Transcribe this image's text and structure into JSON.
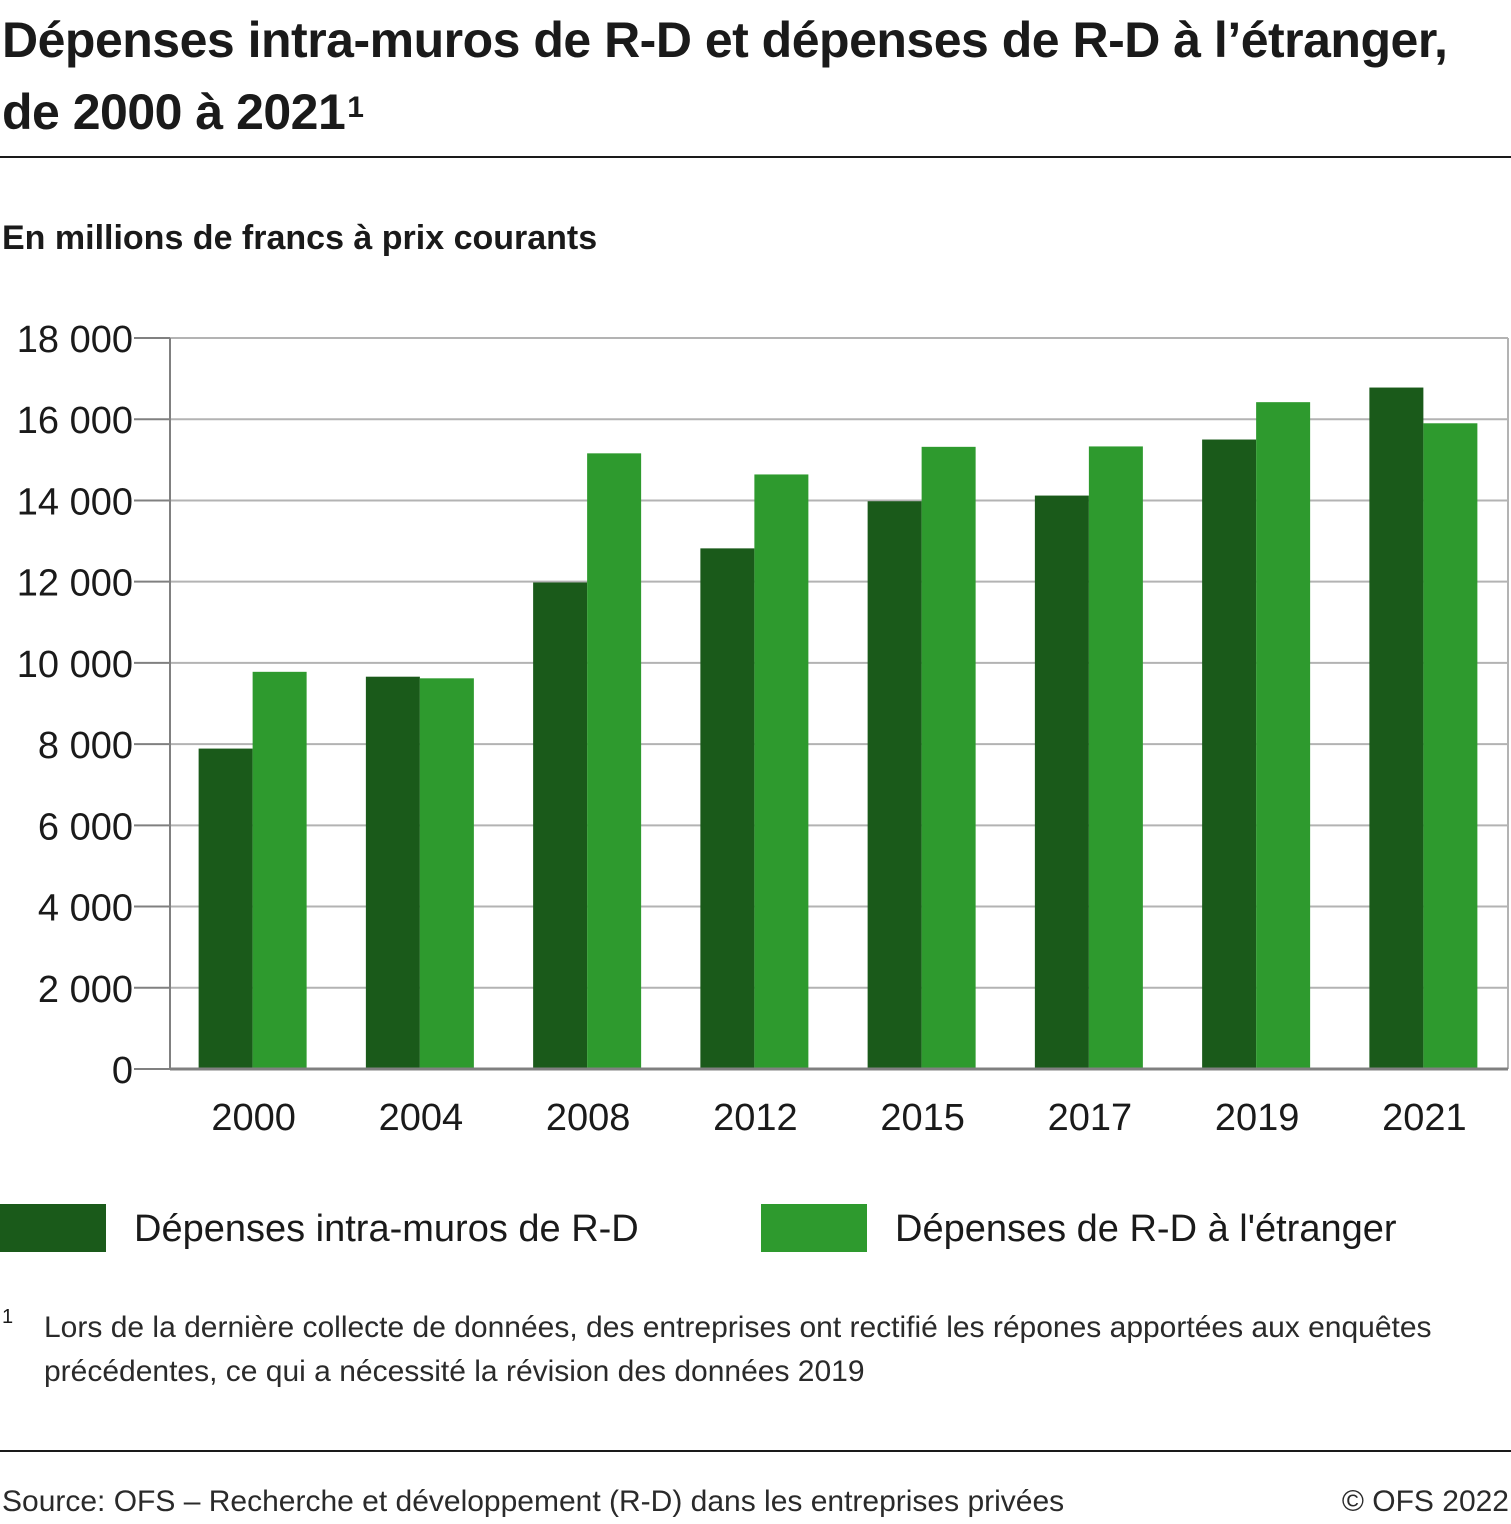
{
  "title": "Dépenses intra-muros de R-D et dépenses de R-D à l’étranger, de 2000 à 2021",
  "title_footnote_mark": "1",
  "subtitle": "En millions de francs à prix courants",
  "colors": {
    "intra_muros": "#1a5a1a",
    "etranger": "#2e9a2e",
    "grid": "#b3b3b3",
    "axis": "#808080"
  },
  "chart_data": {
    "type": "bar",
    "categories": [
      "2000",
      "2004",
      "2008",
      "2012",
      "2015",
      "2017",
      "2019",
      "2021"
    ],
    "series": [
      {
        "name": "Dépenses intra-muros de R-D",
        "values": [
          7890,
          9660,
          11980,
          12820,
          13980,
          14120,
          15500,
          16780
        ]
      },
      {
        "name": "Dépenses de R-D à l'étranger",
        "values": [
          9780,
          9620,
          15160,
          14640,
          15320,
          15330,
          16420,
          15900
        ]
      }
    ],
    "ylim": [
      0,
      18000
    ],
    "yticks": [
      0,
      2000,
      4000,
      6000,
      8000,
      10000,
      12000,
      14000,
      16000,
      18000
    ],
    "ytick_labels": [
      "0",
      "2 000",
      "4 000",
      "6 000",
      "8 000",
      "10 000",
      "12 000",
      "14 000",
      "16 000",
      "18 000"
    ],
    "grid": true,
    "legend_position": "bottom"
  },
  "footnote": {
    "mark": "1",
    "text": "Lors de la dernière collecte de données, des entreprises ont rectifié les répones apportées aux enquêtes précédentes, ce qui a nécessité la révision des données 2019"
  },
  "source": "Source: OFS – Recherche et développement (R-D) dans les entreprises privées",
  "copyright": "© OFS 2022"
}
